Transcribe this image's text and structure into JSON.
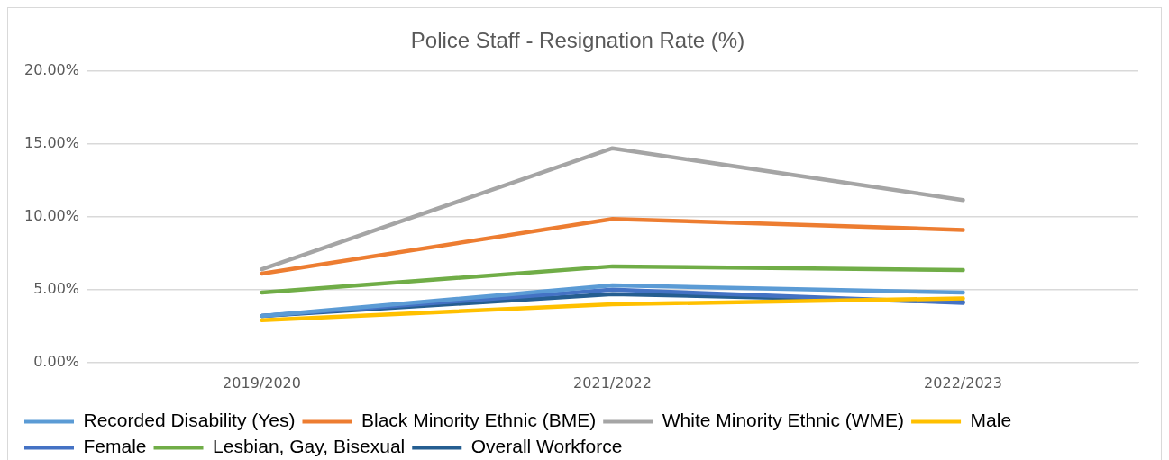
{
  "chart_data": {
    "type": "line",
    "title": "Police Staff - Resignation Rate (%)",
    "categories": [
      "2019/2020",
      "2021/2022",
      "2022/2023"
    ],
    "series": [
      {
        "name": "Recorded Disability (Yes)",
        "color": "#5b9bd5",
        "values": [
          3.2,
          5.3,
          4.8
        ]
      },
      {
        "name": "Black Minority Ethnic (BME)",
        "color": "#ed7d31",
        "values": [
          6.1,
          9.85,
          9.1
        ]
      },
      {
        "name": "White Minority Ethnic (WME)",
        "color": "#a5a5a5",
        "values": [
          6.4,
          14.7,
          11.15
        ]
      },
      {
        "name": "Male",
        "color": "#ffc000",
        "values": [
          2.9,
          4.0,
          4.4
        ]
      },
      {
        "name": "Female",
        "color": "#4472c4",
        "values": [
          3.2,
          5.0,
          4.1
        ]
      },
      {
        "name": "Lesbian, Gay, Bisexual",
        "color": "#70ad47",
        "values": [
          4.8,
          6.6,
          6.35
        ]
      },
      {
        "name": "Overall Workforce",
        "color": "#255e91",
        "values": [
          3.2,
          4.7,
          4.15
        ]
      }
    ],
    "ylim": [
      0,
      20
    ],
    "yticks": [
      {
        "value": 0,
        "label": "0.00%"
      },
      {
        "value": 5,
        "label": "5.00%"
      },
      {
        "value": 10,
        "label": "10.00%"
      },
      {
        "value": 15,
        "label": "15.00%"
      },
      {
        "value": 20,
        "label": "20.00%"
      }
    ],
    "grid": "y",
    "legend": "bottom",
    "marker": "none",
    "line_style": "solid"
  }
}
